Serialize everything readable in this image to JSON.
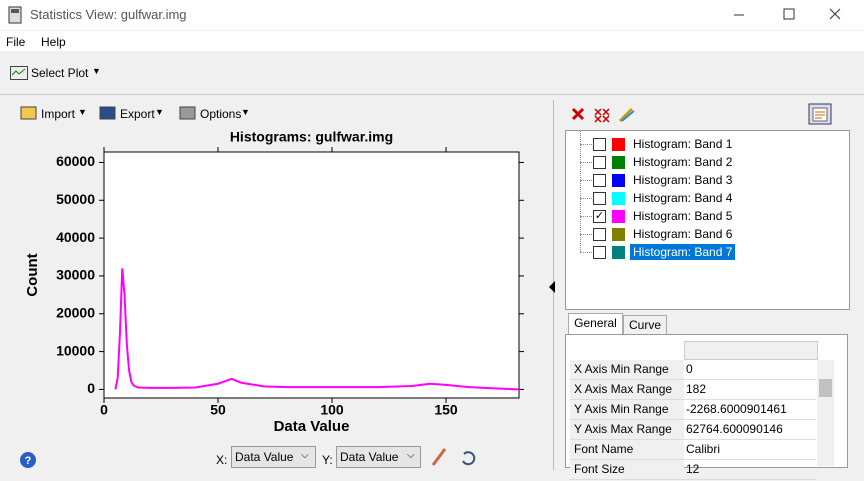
{
  "window": {
    "title": "Statistics View: gulfwar.img"
  },
  "menu": [
    "File",
    "Help"
  ],
  "toolbar": {
    "select_plot": "Select Plot"
  },
  "plot_toolbar": [
    "Import",
    "Export",
    "Options"
  ],
  "chart_data": {
    "type": "line",
    "title": "Histograms: gulfwar.img",
    "x_label": "Data Value",
    "y_label": "Count",
    "x": [
      5,
      6,
      7,
      8,
      9,
      10,
      11,
      12,
      13,
      15,
      20,
      30,
      40,
      50,
      56,
      60,
      70,
      80,
      100,
      120,
      135,
      143,
      150,
      160,
      170,
      182
    ],
    "values": [
      0,
      3000,
      15000,
      32000,
      25000,
      12000,
      5000,
      2000,
      1000,
      500,
      400,
      400,
      500,
      1500,
      2800,
      1800,
      800,
      600,
      600,
      600,
      900,
      1500,
      1200,
      600,
      300,
      0
    ],
    "color": "#ff00ff",
    "xlim": [
      0,
      182
    ],
    "xticks": [
      0,
      50,
      100,
      150
    ],
    "ylim": [
      -2268.6000901461,
      62764.600090146
    ],
    "yticks": [
      0,
      10000,
      20000,
      30000,
      40000,
      50000,
      60000
    ]
  },
  "axis_selectors": {
    "x_label": "X:",
    "x_value": "Data Value",
    "y_label": "Y:",
    "y_value": "Data Value"
  },
  "tree": [
    {
      "label": "Histogram: Band 1",
      "color": "#ff0000",
      "checked": false,
      "selected": false
    },
    {
      "label": "Histogram: Band 2",
      "color": "#008000",
      "checked": false,
      "selected": false
    },
    {
      "label": "Histogram: Band 3",
      "color": "#0000ff",
      "checked": false,
      "selected": false
    },
    {
      "label": "Histogram: Band 4",
      "color": "#00ffff",
      "checked": false,
      "selected": false
    },
    {
      "label": "Histogram: Band 5",
      "color": "#ff00ff",
      "checked": true,
      "selected": false
    },
    {
      "label": "Histogram: Band 6",
      "color": "#808000",
      "checked": false,
      "selected": false
    },
    {
      "label": "Histogram: Band 7",
      "color": "#008080",
      "checked": false,
      "selected": true
    }
  ],
  "tabs": [
    "General",
    "Curve"
  ],
  "properties": [
    {
      "name": "X Axis Min Range",
      "value": "0"
    },
    {
      "name": "X Axis Max Range",
      "value": "182"
    },
    {
      "name": "Y Axis Min Range",
      "value": "-2268.6000901461"
    },
    {
      "name": "Y Axis Max Range",
      "value": "62764.600090146"
    },
    {
      "name": "Font Name",
      "value": "Calibri"
    },
    {
      "name": "Font Size",
      "value": "12"
    }
  ]
}
